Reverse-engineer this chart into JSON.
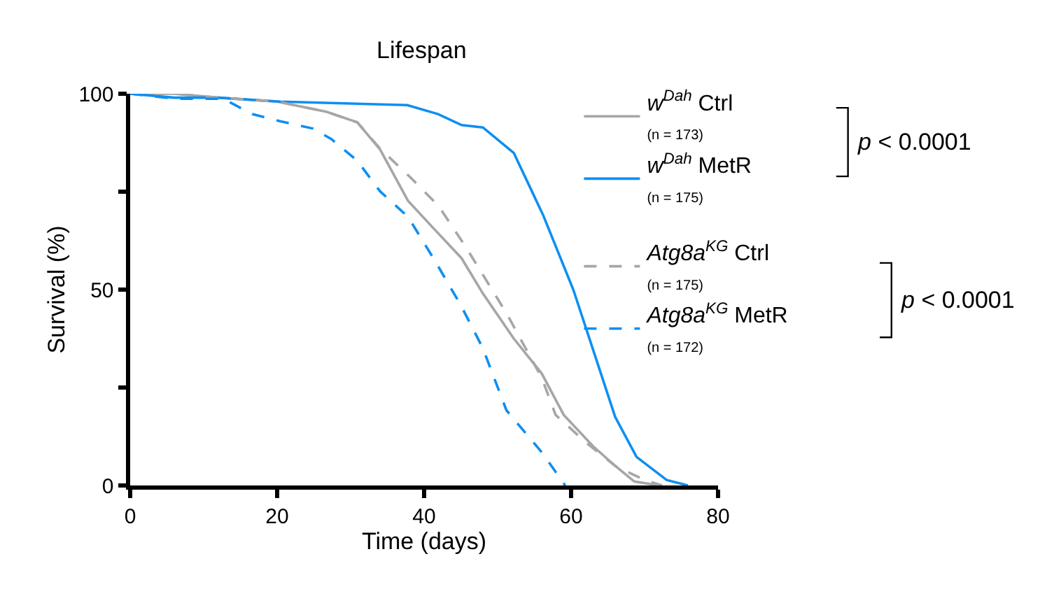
{
  "chart_data": {
    "type": "line",
    "title": "Lifespan",
    "xlabel": "Time (days)",
    "ylabel": "Survival (%)",
    "xlim": [
      0,
      80
    ],
    "xticks": [
      0,
      20,
      40,
      60,
      80
    ],
    "ylim": [
      0,
      100
    ],
    "yticks": [
      0,
      {
        "value": 25,
        "label": null
      },
      50,
      {
        "value": 75,
        "label": null
      },
      100
    ],
    "legend": "right",
    "marker": "none",
    "series": [
      {
        "name": "w$^{Dah}$ Ctrl\n(n = 173)",
        "color": "#a6a6a6",
        "line_style": "solid",
        "x": [
          0,
          6,
          12,
          20,
          26.7,
          30.9,
          34,
          37.8,
          41.3,
          45.1,
          48,
          52.2,
          56,
          59,
          63,
          66,
          68.6,
          72
        ],
        "values": [
          100,
          100,
          99,
          98,
          95.4,
          92.7,
          85.8,
          72.7,
          65.6,
          58,
          49,
          37.5,
          28.6,
          18,
          10,
          5,
          1,
          0
        ]
      },
      {
        "name": "w$^{Dah}$ MetR\n(n = 175)",
        "color": "#0d8ff2",
        "line_style": "solid",
        "x": [
          0,
          6,
          12,
          20.4,
          37.7,
          41.9,
          45.1,
          48,
          52.2,
          56.2,
          60.3,
          66,
          68.9,
          73,
          75.9
        ],
        "values": [
          100,
          99,
          99,
          98,
          97.1,
          94.8,
          92,
          91.4,
          84.9,
          69,
          50,
          17.5,
          7.3,
          1.4,
          0
        ]
      },
      {
        "name": "Atg8a$^{KG}$ Ctrl\n(n = 175)",
        "color": "#a6a6a6",
        "line_style": "dashed",
        "x": [
          0,
          6,
          12,
          20,
          26.7,
          30.9,
          34,
          38.1,
          41.9,
          45.7,
          51.2,
          56,
          57.9,
          62,
          66,
          69.9,
          72.4
        ],
        "values": [
          100,
          100,
          99,
          98,
          95.4,
          92.7,
          86,
          78.7,
          71.5,
          60.8,
          44,
          27.5,
          18,
          11,
          5,
          1.5,
          0
        ]
      },
      {
        "name": "Atg8a$^{KG}$ MetR\n(n = 172)",
        "color": "#0d8ff2",
        "line_style": "dashed",
        "x": [
          0,
          6.3,
          12.7,
          16.6,
          20.4,
          24.9,
          27.4,
          30.9,
          34,
          37.8,
          41.3,
          45,
          48,
          51.2,
          56,
          59.2
        ],
        "values": [
          100,
          98.7,
          98.7,
          94.8,
          93,
          91.1,
          88.4,
          82.9,
          75.1,
          68.6,
          57.9,
          46,
          35,
          19.2,
          8.5,
          0
        ]
      }
    ],
    "annotations": [
      "p < 0.0001",
      "p < 0.0001"
    ]
  }
}
